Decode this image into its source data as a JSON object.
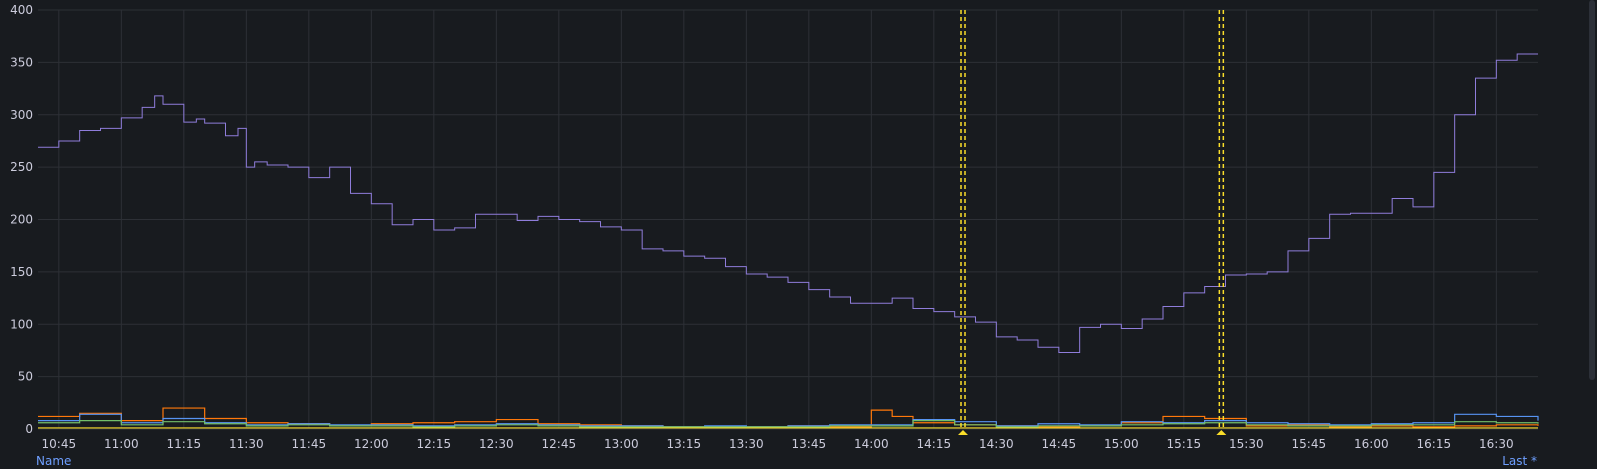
{
  "chart_data": {
    "type": "line",
    "title": "",
    "xlabel": "",
    "ylabel": "",
    "ylim": [
      0,
      400
    ],
    "yticks": [
      0,
      50,
      100,
      150,
      200,
      250,
      300,
      350,
      400
    ],
    "xlim": [
      "10:40",
      "16:40"
    ],
    "xticks": [
      "10:45",
      "11:00",
      "11:15",
      "11:30",
      "11:45",
      "12:00",
      "12:15",
      "12:30",
      "12:45",
      "13:00",
      "13:15",
      "13:30",
      "13:45",
      "14:00",
      "14:15",
      "14:30",
      "14:45",
      "15:00",
      "15:15",
      "15:30",
      "15:45",
      "16:00",
      "16:15",
      "16:30"
    ],
    "grid": true,
    "series": [
      {
        "color": "#8f7ddb",
        "x": [
          "10:40",
          "10:45",
          "10:50",
          "10:55",
          "11:00",
          "11:05",
          "11:08",
          "11:10",
          "11:15",
          "11:18",
          "11:20",
          "11:25",
          "11:28",
          "11:30",
          "11:32",
          "11:35",
          "11:40",
          "11:45",
          "11:50",
          "11:55",
          "12:00",
          "12:05",
          "12:10",
          "12:15",
          "12:20",
          "12:25",
          "12:30",
          "12:35",
          "12:40",
          "12:45",
          "12:50",
          "12:55",
          "13:00",
          "13:05",
          "13:10",
          "13:15",
          "13:20",
          "13:25",
          "13:30",
          "13:35",
          "13:40",
          "13:45",
          "13:50",
          "13:55",
          "14:00",
          "14:05",
          "14:10",
          "14:15",
          "14:20",
          "14:25",
          "14:30",
          "14:35",
          "14:40",
          "14:45",
          "14:50",
          "14:55",
          "15:00",
          "15:05",
          "15:10",
          "15:15",
          "15:20",
          "15:25",
          "15:30",
          "15:35",
          "15:40",
          "15:45",
          "15:50",
          "15:55",
          "16:00",
          "16:05",
          "16:10",
          "16:15",
          "16:20",
          "16:25",
          "16:30",
          "16:35",
          "16:40"
        ],
        "values": [
          269,
          275,
          285,
          287,
          297,
          307,
          318,
          310,
          293,
          296,
          292,
          280,
          287,
          250,
          255,
          252,
          250,
          240,
          250,
          225,
          215,
          195,
          200,
          190,
          192,
          205,
          205,
          199,
          203,
          200,
          198,
          193,
          190,
          172,
          170,
          165,
          163,
          155,
          148,
          145,
          140,
          133,
          126,
          120,
          120,
          125,
          115,
          112,
          107,
          102,
          88,
          85,
          78,
          73,
          97,
          100,
          96,
          105,
          117,
          130,
          136,
          147,
          148,
          150,
          170,
          182,
          205,
          206,
          206,
          220,
          212,
          245,
          300,
          335,
          352,
          358,
          358
        ],
        "x_note": null
      },
      {
        "color": "#ff780a",
        "x": [
          "10:40",
          "10:50",
          "11:00",
          "11:10",
          "11:20",
          "11:30",
          "11:40",
          "11:50",
          "12:00",
          "12:10",
          "12:20",
          "12:30",
          "12:40",
          "12:50",
          "13:00",
          "13:10",
          "13:20",
          "13:30",
          "13:40",
          "13:50",
          "14:00",
          "14:05",
          "14:10",
          "14:20",
          "14:30",
          "14:40",
          "14:50",
          "15:00",
          "15:10",
          "15:20",
          "15:30",
          "15:40",
          "15:50",
          "16:00",
          "16:10",
          "16:20",
          "16:30",
          "16:40"
        ],
        "values": [
          12,
          15,
          8,
          20,
          10,
          6,
          5,
          3,
          5,
          6,
          7,
          9,
          5,
          4,
          3,
          2,
          2,
          2,
          3,
          2,
          18,
          12,
          6,
          4,
          3,
          2,
          3,
          6,
          12,
          10,
          3,
          4,
          2,
          3,
          2,
          3,
          4,
          3
        ]
      },
      {
        "color": "#5794f2",
        "x": [
          "10:40",
          "10:50",
          "11:00",
          "11:10",
          "11:20",
          "11:30",
          "11:40",
          "11:50",
          "12:00",
          "12:10",
          "12:20",
          "12:30",
          "12:40",
          "12:50",
          "13:00",
          "13:10",
          "13:20",
          "13:30",
          "13:40",
          "13:50",
          "14:00",
          "14:10",
          "14:20",
          "14:30",
          "14:40",
          "14:50",
          "15:00",
          "15:10",
          "15:20",
          "15:30",
          "15:40",
          "15:50",
          "16:00",
          "16:10",
          "16:20",
          "16:30",
          "16:40"
        ],
        "values": [
          8,
          14,
          6,
          10,
          6,
          4,
          5,
          4,
          4,
          3,
          4,
          5,
          4,
          3,
          3,
          2,
          3,
          2,
          3,
          4,
          4,
          9,
          7,
          3,
          5,
          4,
          7,
          6,
          8,
          6,
          5,
          4,
          5,
          6,
          14,
          12,
          8
        ]
      },
      {
        "color": "#73bf69",
        "x": [
          "10:40",
          "10:50",
          "11:00",
          "11:10",
          "11:20",
          "11:30",
          "11:40",
          "11:50",
          "12:00",
          "12:10",
          "12:20",
          "12:30",
          "12:40",
          "12:50",
          "13:00",
          "13:10",
          "13:20",
          "13:30",
          "13:40",
          "13:50",
          "14:00",
          "14:10",
          "14:20",
          "14:30",
          "14:40",
          "14:50",
          "15:00",
          "15:10",
          "15:20",
          "15:30",
          "15:40",
          "15:50",
          "16:00",
          "16:10",
          "16:20",
          "16:30",
          "16:40"
        ],
        "values": [
          6,
          8,
          4,
          7,
          5,
          3,
          4,
          3,
          3,
          2,
          3,
          4,
          3,
          2,
          2,
          2,
          2,
          2,
          2,
          3,
          3,
          8,
          4,
          2,
          3,
          3,
          4,
          5,
          6,
          4,
          3,
          3,
          4,
          4,
          7,
          6,
          5
        ]
      },
      {
        "color": "#fade2a",
        "x": [
          "10:40",
          "11:00",
          "11:30",
          "12:00",
          "12:30",
          "13:00",
          "13:30",
          "14:00",
          "14:30",
          "15:00",
          "15:30",
          "16:00",
          "16:30",
          "16:40"
        ],
        "values": [
          1,
          1,
          1,
          1,
          1,
          1,
          1,
          1,
          1,
          1,
          1,
          1,
          1,
          1
        ]
      }
    ],
    "annotations": [
      {
        "x": "14:22",
        "color": "#fade2a",
        "style": "dashed-pair",
        "marker": "triangle"
      },
      {
        "x": "15:24",
        "color": "#fade2a",
        "style": "dashed-pair",
        "marker": "triangle"
      }
    ]
  },
  "legend": {
    "name_header": "Name",
    "last_header": "Last *"
  },
  "colors": {
    "background": "#181b1f",
    "grid": "#2d3036",
    "axis_text": "#ccccdc",
    "legend_header": "#6e9fff"
  }
}
